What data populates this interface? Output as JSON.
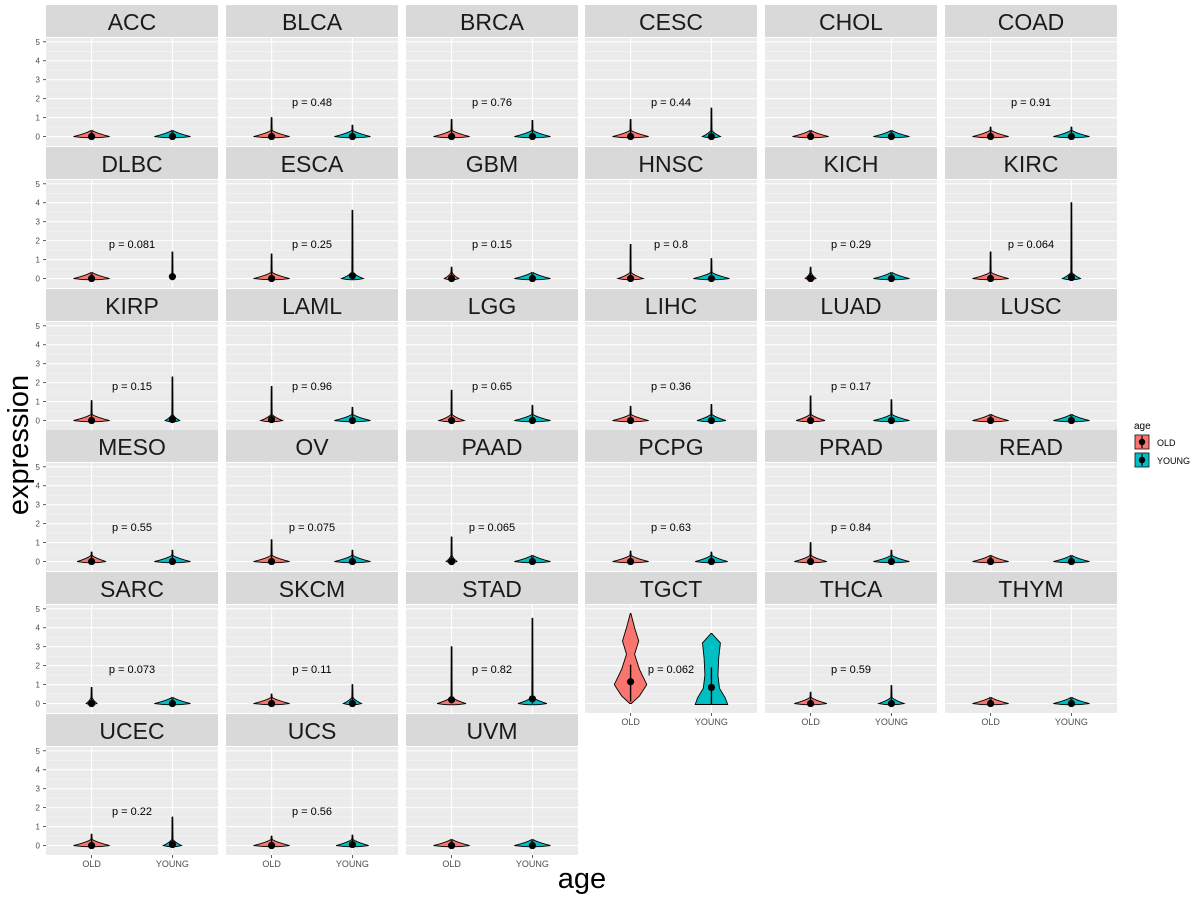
{
  "chart_data": {
    "type": "violin",
    "xlabel": "age",
    "ylabel": "expression",
    "y_ticks": [
      0,
      1,
      2,
      3,
      4,
      5
    ],
    "ylim": [
      -0.5,
      5.2
    ],
    "categories": [
      "OLD",
      "YOUNG"
    ],
    "legend": {
      "title": "age",
      "position": "right",
      "entries": [
        {
          "label": "OLD",
          "color": "#F8766D"
        },
        {
          "label": "YOUNG",
          "color": "#00BFC4"
        }
      ]
    },
    "panels": [
      {
        "name": "ACC",
        "p": "",
        "old": {
          "median": 0,
          "max": 0.02,
          "width": 0.5
        },
        "young": {
          "median": 0,
          "max": 0.02,
          "width": 0.5
        }
      },
      {
        "name": "BLCA",
        "p": "p = 0.48",
        "old": {
          "median": 0,
          "max": 1.0,
          "width": 0.5
        },
        "young": {
          "median": 0,
          "max": 0.6,
          "width": 0.5
        }
      },
      {
        "name": "BRCA",
        "p": "p = 0.76",
        "old": {
          "median": 0,
          "max": 0.9,
          "width": 0.5
        },
        "young": {
          "median": 0,
          "max": 0.85,
          "width": 0.5
        }
      },
      {
        "name": "CESC",
        "p": "p = 0.44",
        "old": {
          "median": 0,
          "max": 0.9,
          "width": 0.5
        },
        "young": {
          "median": 0,
          "max": 1.5,
          "width": 0.25
        }
      },
      {
        "name": "CHOL",
        "p": "",
        "old": {
          "median": 0,
          "max": 0.02,
          "width": 0.5
        },
        "young": {
          "median": 0,
          "max": 0.02,
          "width": 0.5
        }
      },
      {
        "name": "COAD",
        "p": "p = 0.91",
        "old": {
          "median": 0,
          "max": 0.5,
          "width": 0.5
        },
        "young": {
          "median": 0,
          "max": 0.5,
          "width": 0.5
        }
      },
      {
        "name": "DLBC",
        "p": "p = 0.081",
        "old": {
          "median": 0,
          "max": 0.02,
          "width": 0.5
        },
        "young": {
          "median": 0.1,
          "max": 1.4,
          "width": 0.05
        }
      },
      {
        "name": "ESCA",
        "p": "p = 0.25",
        "old": {
          "median": 0,
          "max": 1.3,
          "width": 0.5
        },
        "young": {
          "median": 0.15,
          "max": 3.6,
          "width": 0.3
        }
      },
      {
        "name": "GBM",
        "p": "p = 0.15",
        "old": {
          "median": 0,
          "max": 0.6,
          "width": 0.2
        },
        "young": {
          "median": 0,
          "max": 0.02,
          "width": 0.5
        }
      },
      {
        "name": "HNSC",
        "p": "p = 0.8",
        "old": {
          "median": 0,
          "max": 1.8,
          "width": 0.35
        },
        "young": {
          "median": 0,
          "max": 1.05,
          "width": 0.5
        }
      },
      {
        "name": "KICH",
        "p": "p = 0.29",
        "old": {
          "median": 0,
          "max": 0.6,
          "width": 0.15
        },
        "young": {
          "median": 0,
          "max": 0.02,
          "width": 0.5
        }
      },
      {
        "name": "KIRC",
        "p": "p = 0.064",
        "old": {
          "median": 0,
          "max": 1.4,
          "width": 0.5
        },
        "young": {
          "median": 0.05,
          "max": 4.0,
          "width": 0.25
        }
      },
      {
        "name": "KIRP",
        "p": "p = 0.15",
        "old": {
          "median": 0,
          "max": 1.05,
          "width": 0.5
        },
        "young": {
          "median": 0.05,
          "max": 2.3,
          "width": 0.2
        }
      },
      {
        "name": "LAML",
        "p": "p = 0.96",
        "old": {
          "median": 0.05,
          "max": 1.8,
          "width": 0.3
        },
        "young": {
          "median": 0,
          "max": 0.7,
          "width": 0.5
        }
      },
      {
        "name": "LGG",
        "p": "p = 0.65",
        "old": {
          "median": 0,
          "max": 1.6,
          "width": 0.35
        },
        "young": {
          "median": 0,
          "max": 0.8,
          "width": 0.5
        }
      },
      {
        "name": "LIHC",
        "p": "p = 0.36",
        "old": {
          "median": 0,
          "max": 0.75,
          "width": 0.5
        },
        "young": {
          "median": 0,
          "max": 0.85,
          "width": 0.4
        }
      },
      {
        "name": "LUAD",
        "p": "p = 0.17",
        "old": {
          "median": 0,
          "max": 1.3,
          "width": 0.4
        },
        "young": {
          "median": 0,
          "max": 1.1,
          "width": 0.5
        }
      },
      {
        "name": "LUSC",
        "p": "",
        "old": {
          "median": 0,
          "max": 0.02,
          "width": 0.5
        },
        "young": {
          "median": 0,
          "max": 0.02,
          "width": 0.5
        }
      },
      {
        "name": "MESO",
        "p": "p = 0.55",
        "old": {
          "median": 0,
          "max": 0.5,
          "width": 0.4
        },
        "young": {
          "median": 0,
          "max": 0.6,
          "width": 0.5
        }
      },
      {
        "name": "OV",
        "p": "p = 0.075",
        "old": {
          "median": 0,
          "max": 1.15,
          "width": 0.5
        },
        "young": {
          "median": 0,
          "max": 0.6,
          "width": 0.5
        }
      },
      {
        "name": "PAAD",
        "p": "p = 0.065",
        "old": {
          "median": 0,
          "max": 1.3,
          "width": 0.15
        },
        "young": {
          "median": 0,
          "max": 0.02,
          "width": 0.5
        }
      },
      {
        "name": "PCPG",
        "p": "p = 0.63",
        "old": {
          "median": 0,
          "max": 0.55,
          "width": 0.5
        },
        "young": {
          "median": 0,
          "max": 0.5,
          "width": 0.45
        }
      },
      {
        "name": "PRAD",
        "p": "p = 0.84",
        "old": {
          "median": 0,
          "max": 1.0,
          "width": 0.45
        },
        "young": {
          "median": 0,
          "max": 0.6,
          "width": 0.5
        }
      },
      {
        "name": "READ",
        "p": "",
        "old": {
          "median": 0,
          "max": 0.02,
          "width": 0.5
        },
        "young": {
          "median": 0,
          "max": 0.02,
          "width": 0.5
        }
      },
      {
        "name": "SARC",
        "p": "p = 0.073",
        "old": {
          "median": 0,
          "max": 0.85,
          "width": 0.15
        },
        "young": {
          "median": 0,
          "max": 0.02,
          "width": 0.5
        }
      },
      {
        "name": "SKCM",
        "p": "p = 0.11",
        "old": {
          "median": 0,
          "max": 0.5,
          "width": 0.5
        },
        "young": {
          "median": 0,
          "max": 1.0,
          "width": 0.25
        }
      },
      {
        "name": "STAD",
        "p": "p = 0.82",
        "old": {
          "median": 0.2,
          "max": 3.0,
          "width": 0.4
        },
        "young": {
          "median": 0.25,
          "max": 4.5,
          "width": 0.4
        }
      },
      {
        "name": "TGCT",
        "p": "p = 0.062",
        "old": {
          "median": 1.15,
          "q1": 0.1,
          "q3": 2.05,
          "max": 4.75,
          "width": 0.45,
          "shape": "tgct_old"
        },
        "young": {
          "median": 0.85,
          "q1": -0.05,
          "q3": 1.9,
          "max": 3.7,
          "width": 0.45,
          "shape": "tgct_young"
        }
      },
      {
        "name": "THCA",
        "p": "p = 0.59",
        "old": {
          "median": 0,
          "max": 0.6,
          "width": 0.45
        },
        "young": {
          "median": 0,
          "max": 0.95,
          "width": 0.35
        }
      },
      {
        "name": "THYM",
        "p": "",
        "old": {
          "median": 0,
          "max": 0.02,
          "width": 0.5
        },
        "young": {
          "median": 0,
          "max": 0.02,
          "width": 0.5
        }
      },
      {
        "name": "UCEC",
        "p": "p = 0.22",
        "old": {
          "median": 0,
          "max": 0.6,
          "width": 0.5
        },
        "young": {
          "median": 0.05,
          "max": 1.5,
          "width": 0.25
        }
      },
      {
        "name": "UCS",
        "p": "p = 0.56",
        "old": {
          "median": 0,
          "max": 0.5,
          "width": 0.5
        },
        "young": {
          "median": 0.05,
          "max": 0.55,
          "width": 0.45
        }
      },
      {
        "name": "UVM",
        "p": "",
        "old": {
          "median": 0,
          "max": 0.02,
          "width": 0.5
        },
        "young": {
          "median": 0,
          "max": 0.02,
          "width": 0.5
        }
      }
    ]
  }
}
